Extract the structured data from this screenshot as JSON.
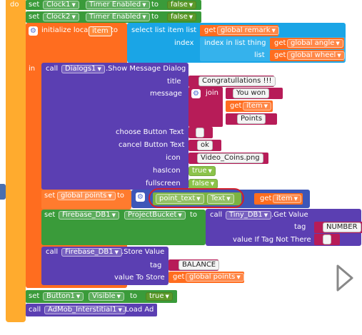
{
  "left": {
    "do_label": "do",
    "in_label": "in"
  },
  "row1": {
    "set": "set",
    "component": "Clock1",
    "property": "Timer Enabled",
    "to": "to",
    "value": "false"
  },
  "row2": {
    "set": "set",
    "component": "Clock2",
    "property": "Timer Enabled",
    "to": "to",
    "value": "false"
  },
  "local": {
    "label": "initialize local",
    "var": "item",
    "to": "to"
  },
  "select": {
    "label": "select list item  list",
    "index_label": "index",
    "thing_label": "index in list  thing",
    "list_label": "list",
    "get": "get",
    "remark": "global remark",
    "angle": "global angle",
    "wheel": "global wheel"
  },
  "dialog": {
    "call": "call",
    "component": "Dialogs1",
    "method": ".Show Message Dialog",
    "title_label": "title",
    "title_value": "Congratullations !!!",
    "message_label": "message",
    "join": "join",
    "you_won": "You won",
    "get": "get",
    "item": "item",
    "points": "Points",
    "choose_label": "choose Button Text",
    "choose_value": " ",
    "cancel_label": "cancel Button Text",
    "cancel_value": "ok",
    "icon_label": "icon",
    "icon_value": "Video_Coins.png",
    "hasicon_label": "hasIcon",
    "hasicon_value": "true",
    "fullscreen_label": "fullscreen",
    "fullscreen_value": "false"
  },
  "setpoints": {
    "set": "set",
    "var": "global points",
    "to": "to",
    "point_text": "point_text",
    "text": "Text",
    "get": "get",
    "item": "item"
  },
  "firebase": {
    "set": "set",
    "component": "Firebase_DB1",
    "property": "ProjectBucket",
    "to": "to",
    "call": "call",
    "tiny": "Tiny_DB1",
    "method": ".Get Value",
    "tag_label": "tag",
    "tag_value": "NUMBER",
    "notthere_label": "value If Tag Not There",
    "notthere_value": " "
  },
  "store": {
    "call": "call",
    "component": "Firebase_DB1",
    "method": ".Store Value",
    "tag_label": "tag",
    "tag_value": "BALANCE",
    "store_label": "value To Store",
    "get": "get",
    "var": "global points"
  },
  "button1": {
    "set": "set",
    "component": "Button1",
    "property": "Visible",
    "to": "to",
    "value": "true"
  },
  "admob": {
    "call": "call",
    "component": "AdMob_Interstitial1",
    "method": ".Load Ad"
  },
  "colors": {
    "event_orange": "#ff6d1f",
    "set_green": "#3a9b3a",
    "call_purple": "#5b3fb2",
    "list_blue": "#1aa5e6",
    "text_pink": "#b71c58",
    "highlight_red": "#d21f2a"
  },
  "icons": [
    "gear-icon",
    "play-icon",
    "dropdown-arrow-icon"
  ]
}
